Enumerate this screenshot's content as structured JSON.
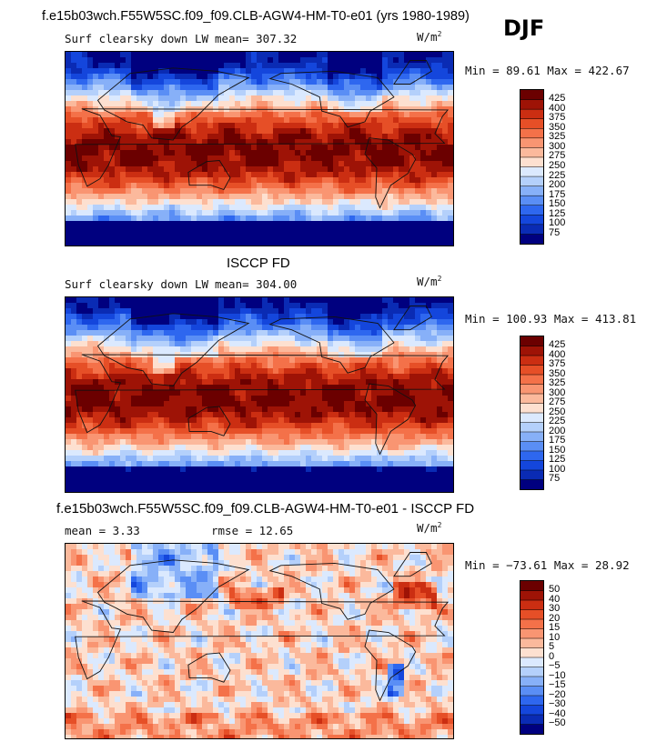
{
  "header": {
    "title": "f.e15b03wch.F55W5SC.f09_f09.CLB-AGW4-HM-T0-e01 (yrs 1980-1989)",
    "season": "DJF"
  },
  "panels": [
    {
      "variable": "Surf clearsky down LW",
      "mean_text": "mean= 307.32",
      "units_base": "W/m",
      "units_exp": "2",
      "minmax_text": "Min =  89.61 Max = 422.67",
      "field": "model",
      "colorbar_labels": [
        "425",
        "400",
        "375",
        "350",
        "325",
        "300",
        "275",
        "250",
        "225",
        "200",
        "175",
        "150",
        "125",
        "100",
        "75"
      ]
    },
    {
      "heading": "ISCCP FD",
      "variable": "Surf clearsky down LW",
      "mean_text": "mean= 304.00",
      "units_base": "W/m",
      "units_exp": "2",
      "minmax_text": "Min = 100.93 Max = 413.81",
      "field": "obs",
      "colorbar_labels": [
        "425",
        "400",
        "375",
        "350",
        "325",
        "300",
        "275",
        "250",
        "225",
        "200",
        "175",
        "150",
        "125",
        "100",
        "75"
      ]
    },
    {
      "heading": "f.e15b03wch.F55W5SC.f09_f09.CLB-AGW4-HM-T0-e01 - ISCCP FD",
      "mean_text": "mean =   3.33",
      "rmse_text": "rmse =  12.65",
      "units_base": "W/m",
      "units_exp": "2",
      "minmax_text": "Min = −73.61 Max =  28.92",
      "field": "diff",
      "colorbar_labels": [
        "50",
        "40",
        "30",
        "20",
        "15",
        "10",
        "5",
        "0",
        "−5",
        "−10",
        "−15",
        "−20",
        "−30",
        "−40",
        "−50"
      ]
    }
  ],
  "chart_data": [
    {
      "type": "heatmap",
      "title": "Surf clearsky down LW",
      "stat": {
        "mean": 307.32,
        "min": 89.61,
        "max": 422.67
      },
      "units": "W/m2",
      "x_range": [
        0,
        360
      ],
      "y_range": [
        -90,
        90
      ],
      "colorbar": {
        "levels": [
          75,
          100,
          125,
          150,
          175,
          200,
          225,
          250,
          275,
          300,
          325,
          350,
          375,
          400,
          425
        ],
        "colors": [
          "#00007f",
          "#0a2bb4",
          "#1446dc",
          "#2e67ef",
          "#5a8ef5",
          "#87b0f8",
          "#b4d0fb",
          "#dbe9fe",
          "#fde0d0",
          "#fbb99c",
          "#f99572",
          "#f47149",
          "#e64f27",
          "#cb2e12",
          "#9e1306",
          "#6b0000"
        ]
      }
    },
    {
      "type": "heatmap",
      "title": "Surf clearsky down LW",
      "dataset": "ISCCP FD",
      "stat": {
        "mean": 304.0,
        "min": 100.93,
        "max": 413.81
      },
      "units": "W/m2",
      "x_range": [
        0,
        360
      ],
      "y_range": [
        -90,
        90
      ],
      "colorbar": {
        "levels": [
          75,
          100,
          125,
          150,
          175,
          200,
          225,
          250,
          275,
          300,
          325,
          350,
          375,
          400,
          425
        ],
        "colors": [
          "#00007f",
          "#0a2bb4",
          "#1446dc",
          "#2e67ef",
          "#5a8ef5",
          "#87b0f8",
          "#b4d0fb",
          "#dbe9fe",
          "#fde0d0",
          "#fbb99c",
          "#f99572",
          "#f47149",
          "#e64f27",
          "#cb2e12",
          "#9e1306",
          "#6b0000"
        ]
      }
    },
    {
      "type": "heatmap",
      "title": "f.e15b03wch.F55W5SC.f09_f09.CLB-AGW4-HM-T0-e01 - ISCCP FD",
      "stat": {
        "mean": 3.33,
        "rmse": 12.65,
        "min": -73.61,
        "max": 28.92
      },
      "units": "W/m2",
      "x_range": [
        0,
        360
      ],
      "y_range": [
        -90,
        90
      ],
      "colorbar": {
        "levels": [
          -50,
          -40,
          -30,
          -20,
          -15,
          -10,
          -5,
          0,
          5,
          10,
          15,
          20,
          30,
          40,
          50
        ],
        "colors": [
          "#00007f",
          "#0a2bb4",
          "#1446dc",
          "#2e67ef",
          "#5a8ef5",
          "#87b0f8",
          "#b4d0fb",
          "#dbe9fe",
          "#fde0d0",
          "#fbb99c",
          "#f99572",
          "#f47149",
          "#e64f27",
          "#cb2e12",
          "#9e1306",
          "#6b0000"
        ]
      }
    }
  ]
}
